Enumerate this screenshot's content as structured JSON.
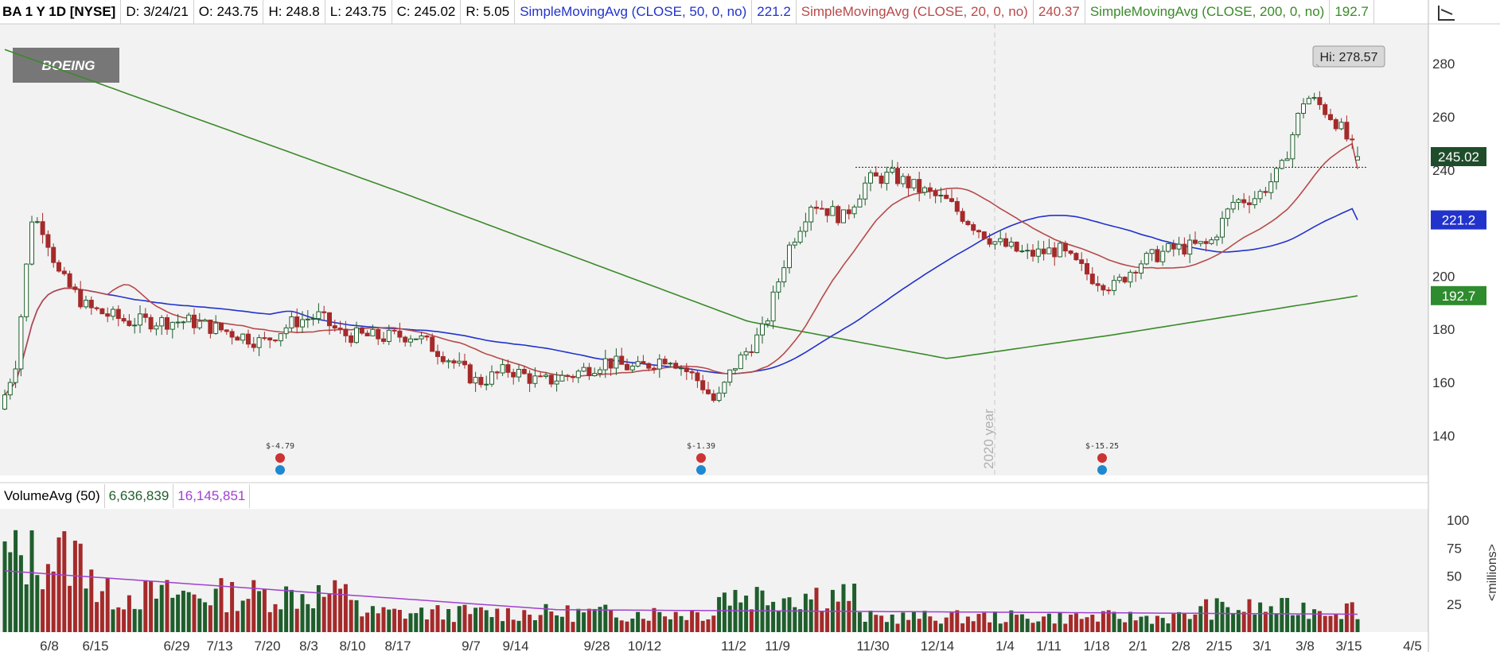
{
  "header": {
    "symbol": "BA 1 Y 1D [NYSE]",
    "date": "D: 3/24/21",
    "open": "O: 243.75",
    "high": "H: 248.8",
    "low": "L: 243.75",
    "close": "C: 245.02",
    "range": "R: 5.05",
    "sma50_label": "SimpleMovingAvg (CLOSE, 50, 0, no)",
    "sma50_value": "221.2",
    "sma20_label": "SimpleMovingAvg (CLOSE, 20, 0, no)",
    "sma20_value": "240.37",
    "sma200_label": "SimpleMovingAvg (CLOSE, 200, 0, no)",
    "sma200_value": "192.7"
  },
  "logo_text": "BOEING",
  "volume_header": {
    "label": "VolumeAvg (50)",
    "volume": "6,636,839",
    "avg": "16,145,851"
  },
  "colors": {
    "up": "#1f5e2c",
    "down": "#a52a2a",
    "sma50": "#2233cc",
    "sma20": "#b84a4a",
    "sma200": "#3a8a2a",
    "volavg": "#a040d0",
    "background": "#f2f2f2"
  },
  "chart_data": [
    {
      "type": "candlestick",
      "title": "BA 1 Y 1D [NYSE]",
      "ylim": [
        125,
        295
      ],
      "yticks": [
        140,
        160,
        180,
        200,
        220,
        240,
        260,
        280
      ],
      "ytick_labels": [
        "140",
        "160",
        "180",
        "200",
        "",
        "240",
        "260",
        "280"
      ],
      "xticks": [
        "6/8",
        "6/15",
        "6/29",
        "7/13",
        "7/20",
        "8/3",
        "8/10",
        "8/17",
        "9/7",
        "9/14",
        "9/28",
        "10/12",
        "11/2",
        "11/9",
        "11/30",
        "12/14",
        "1/4",
        "1/11",
        "1/18",
        "2/1",
        "2/8",
        "2/15",
        "3/1",
        "3/8",
        "3/15",
        "4/5"
      ],
      "year_marker": "2020 year",
      "high_label": "Hi: 278.57",
      "high_value": 278.57,
      "resistance_level": 241,
      "last_price": 245.02,
      "sma_values": {
        "sma50": 221.2,
        "sma200": 192.7
      },
      "earnings_labels": [
        "$-4.79",
        "$-1.39",
        "$-15.25"
      ],
      "grid": false
    },
    {
      "type": "bar",
      "title": "VolumeAvg (50)",
      "ylim": [
        0,
        110
      ],
      "yticks": [
        25,
        50,
        75,
        100
      ],
      "unit_label": "<millions>"
    }
  ]
}
